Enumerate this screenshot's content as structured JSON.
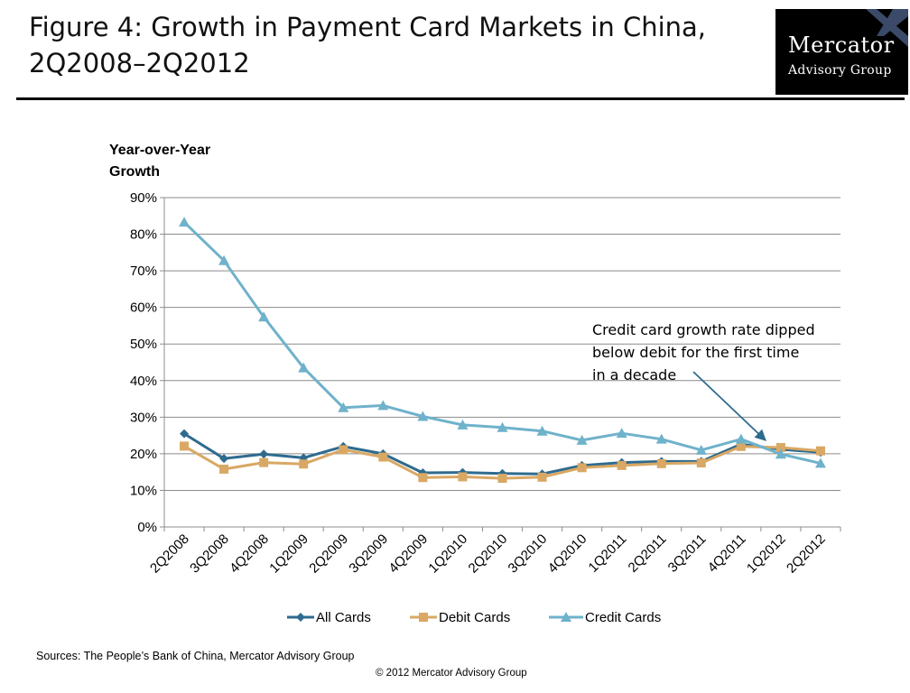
{
  "slide": {
    "title_line1": "Figure 4: Growth in Payment Card Markets in China,",
    "title_line2": "2Q2008–2Q2012"
  },
  "logo": {
    "line1": "Mercator",
    "line2": "Advisory Group"
  },
  "chart_data": {
    "type": "line",
    "ylabel": "Year-over-Year Growth",
    "ylabel_lines": [
      "Year-over-Year",
      "Growth"
    ],
    "xlabel": "",
    "ylim": [
      0,
      90
    ],
    "yticks": [
      "0%",
      "10%",
      "20%",
      "30%",
      "40%",
      "50%",
      "60%",
      "70%",
      "80%",
      "90%"
    ],
    "categories": [
      "2Q2008",
      "3Q2008",
      "4Q2008",
      "1Q2009",
      "2Q2009",
      "3Q2009",
      "4Q2009",
      "1Q2010",
      "2Q2010",
      "3Q2010",
      "4Q2010",
      "1Q2011",
      "2Q2011",
      "3Q2011",
      "4Q2011",
      "1Q2012",
      "2Q2012"
    ],
    "grid": "horizontal",
    "legend_position": "bottom",
    "series": [
      {
        "name": "All Cards",
        "color": "#2E6B8F",
        "marker": "diamond",
        "values": [
          25.5,
          18.7,
          19.9,
          18.9,
          22.0,
          20.0,
          14.8,
          14.9,
          14.6,
          14.5,
          16.8,
          17.6,
          17.9,
          17.9,
          22.6,
          21.2,
          20.4
        ]
      },
      {
        "name": "Debit Cards",
        "color": "#D9A864",
        "marker": "square",
        "values": [
          22.1,
          15.8,
          17.6,
          17.2,
          21.1,
          19.1,
          13.5,
          13.7,
          13.3,
          13.6,
          16.2,
          16.8,
          17.3,
          17.5,
          22.0,
          21.7,
          20.8
        ]
      },
      {
        "name": "Credit Cards",
        "color": "#6FB2CB",
        "marker": "triangle",
        "values": [
          83.3,
          72.8,
          57.4,
          43.5,
          32.6,
          33.2,
          30.2,
          27.9,
          27.2,
          26.2,
          23.7,
          25.6,
          24.0,
          21.0,
          24.0,
          19.9,
          17.4
        ]
      }
    ],
    "annotation": {
      "lines": [
        "Credit card growth rate dipped",
        "below debit for the first time",
        "in a decade"
      ],
      "points_to": "1Q2012"
    }
  },
  "source_text": "Sources: The People’s Bank of China,  Mercator Advisory Group",
  "copyright_text": "© 2012 Mercator Advisory Group"
}
